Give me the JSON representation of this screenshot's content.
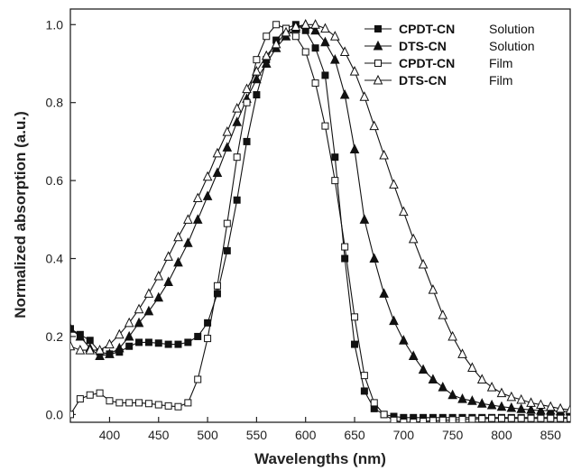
{
  "chart_data": {
    "type": "line",
    "xlabel": "Wavelengths (nm)",
    "ylabel": "Normalized absorption (a.u.)",
    "xlim": [
      360,
      870
    ],
    "ylim": [
      -0.02,
      1.04
    ],
    "x_ticks": [
      400,
      450,
      500,
      550,
      600,
      650,
      700,
      750,
      800,
      850
    ],
    "y_ticks": [
      0.0,
      0.2,
      0.4,
      0.6,
      0.8,
      1.0
    ],
    "y_tick_labels": [
      "0.0",
      "0.2",
      "0.4",
      "0.6",
      "0.8",
      "1.0"
    ],
    "grid": false,
    "legend_position": "top-right",
    "series": [
      {
        "name": "CPDT-CN",
        "legend_suffix": "Solution",
        "marker": "square-filled",
        "color": "#111111",
        "x": [
          360,
          370,
          380,
          390,
          400,
          410,
          420,
          430,
          440,
          450,
          460,
          470,
          480,
          490,
          500,
          510,
          520,
          530,
          540,
          550,
          560,
          570,
          580,
          590,
          600,
          610,
          620,
          630,
          640,
          650,
          660,
          670,
          680,
          690,
          700,
          710,
          720,
          730,
          740,
          750,
          760,
          770,
          780,
          790,
          800,
          810,
          820,
          830,
          840,
          850,
          860,
          870
        ],
        "y": [
          0.22,
          0.205,
          0.19,
          0.16,
          0.155,
          0.16,
          0.175,
          0.185,
          0.185,
          0.183,
          0.18,
          0.18,
          0.185,
          0.2,
          0.235,
          0.31,
          0.42,
          0.55,
          0.7,
          0.82,
          0.91,
          0.96,
          0.99,
          1.0,
          0.985,
          0.94,
          0.87,
          0.66,
          0.4,
          0.18,
          0.06,
          0.015,
          0.0,
          -0.005,
          -0.008,
          -0.008,
          -0.008,
          -0.008,
          -0.008,
          -0.008,
          -0.008,
          -0.008,
          -0.008,
          -0.008,
          -0.008,
          -0.008,
          -0.008,
          -0.008,
          -0.008,
          -0.008,
          -0.008,
          -0.008
        ]
      },
      {
        "name": "DTS-CN",
        "legend_suffix": "Solution",
        "marker": "triangle-filled",
        "color": "#111111",
        "x": [
          360,
          370,
          380,
          390,
          400,
          410,
          420,
          430,
          440,
          450,
          460,
          470,
          480,
          490,
          500,
          510,
          520,
          530,
          540,
          550,
          560,
          570,
          580,
          590,
          600,
          610,
          620,
          630,
          640,
          650,
          660,
          670,
          680,
          690,
          700,
          710,
          720,
          730,
          740,
          750,
          760,
          770,
          780,
          790,
          800,
          810,
          820,
          830,
          840,
          850,
          860,
          870
        ],
        "y": [
          0.22,
          0.2,
          0.17,
          0.15,
          0.155,
          0.17,
          0.2,
          0.235,
          0.265,
          0.3,
          0.34,
          0.39,
          0.44,
          0.5,
          0.56,
          0.62,
          0.685,
          0.75,
          0.81,
          0.86,
          0.9,
          0.94,
          0.97,
          0.99,
          1.0,
          0.985,
          0.955,
          0.91,
          0.82,
          0.68,
          0.5,
          0.4,
          0.31,
          0.24,
          0.19,
          0.15,
          0.115,
          0.09,
          0.07,
          0.05,
          0.04,
          0.035,
          0.028,
          0.024,
          0.02,
          0.017,
          0.014,
          0.012,
          0.01,
          0.01,
          0.008,
          0.008
        ]
      },
      {
        "name": "CPDT-CN",
        "legend_suffix": "Film",
        "marker": "square-open",
        "color": "#111111",
        "x": [
          360,
          370,
          380,
          390,
          400,
          410,
          420,
          430,
          440,
          450,
          460,
          470,
          480,
          490,
          500,
          510,
          520,
          530,
          540,
          550,
          560,
          570,
          580,
          590,
          600,
          610,
          620,
          630,
          640,
          650,
          660,
          670,
          680,
          690,
          700,
          710,
          720,
          730,
          740,
          750,
          760,
          770,
          780,
          790,
          800,
          810,
          820,
          830,
          840,
          850,
          860,
          870
        ],
        "y": [
          0.0,
          0.04,
          0.05,
          0.055,
          0.035,
          0.03,
          0.03,
          0.03,
          0.028,
          0.025,
          0.022,
          0.02,
          0.03,
          0.09,
          0.195,
          0.33,
          0.49,
          0.66,
          0.8,
          0.91,
          0.97,
          1.0,
          0.99,
          0.97,
          0.93,
          0.85,
          0.74,
          0.6,
          0.43,
          0.25,
          0.1,
          0.03,
          0.0,
          -0.015,
          -0.02,
          -0.02,
          -0.018,
          -0.016,
          -0.015,
          -0.014,
          -0.013,
          -0.012,
          -0.011,
          -0.01,
          -0.01,
          -0.01,
          -0.01,
          -0.01,
          -0.01,
          -0.01,
          -0.01,
          -0.01
        ]
      },
      {
        "name": "DTS-CN",
        "legend_suffix": "Film",
        "marker": "triangle-open",
        "color": "#111111",
        "x": [
          360,
          370,
          380,
          390,
          400,
          410,
          420,
          430,
          440,
          450,
          460,
          470,
          480,
          490,
          500,
          510,
          520,
          530,
          540,
          550,
          560,
          570,
          580,
          590,
          600,
          610,
          620,
          630,
          640,
          650,
          660,
          670,
          680,
          690,
          700,
          710,
          720,
          730,
          740,
          750,
          760,
          770,
          780,
          790,
          800,
          810,
          820,
          830,
          840,
          850,
          860,
          870
        ],
        "y": [
          0.175,
          0.165,
          0.165,
          0.165,
          0.18,
          0.205,
          0.235,
          0.27,
          0.31,
          0.355,
          0.405,
          0.455,
          0.5,
          0.555,
          0.61,
          0.67,
          0.725,
          0.785,
          0.835,
          0.88,
          0.92,
          0.95,
          0.98,
          0.995,
          1.0,
          1.0,
          0.99,
          0.97,
          0.93,
          0.88,
          0.815,
          0.74,
          0.665,
          0.59,
          0.52,
          0.45,
          0.385,
          0.32,
          0.255,
          0.2,
          0.155,
          0.12,
          0.09,
          0.07,
          0.055,
          0.045,
          0.038,
          0.03,
          0.025,
          0.02,
          0.015,
          0.012
        ]
      }
    ]
  }
}
